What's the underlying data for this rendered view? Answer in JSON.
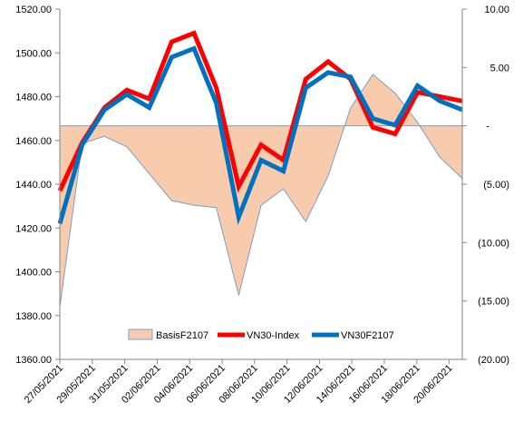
{
  "chart_data": {
    "type": "line",
    "x": [
      "27/05/2021",
      "28/05/2021",
      "31/05/2021",
      "01/06/2021",
      "02/06/2021",
      "03/06/2021",
      "04/06/2021",
      "07/06/2021",
      "08/06/2021",
      "09/06/2021",
      "10/06/2021",
      "11/06/2021",
      "14/06/2021",
      "15/06/2021",
      "16/06/2021",
      "17/06/2021",
      "18/06/2021",
      "21/06/2021",
      "22/06/2021"
    ],
    "x_tick_labels": [
      "27/05/2021",
      "29/05/2021",
      "31/05/2021",
      "02/06/2021",
      "04/06/2021",
      "06/06/2021",
      "08/06/2021",
      "10/06/2021",
      "12/06/2021",
      "14/06/2021",
      "16/06/2021",
      "18/06/2021",
      "20/06/2021"
    ],
    "y_left": {
      "ylim": [
        1360,
        1520
      ],
      "ticks": [
        "1360.00",
        "1380.00",
        "1400.00",
        "1420.00",
        "1440.00",
        "1460.00",
        "1480.00",
        "1500.00",
        "1520.00"
      ]
    },
    "y_right": {
      "ylim": [
        -20,
        10
      ],
      "ticks": [
        "(20.00)",
        "(15.00)",
        "(10.00)",
        "(5.00)",
        "-",
        "5.00",
        "10.00"
      ]
    },
    "series": [
      {
        "name": "BasisF2107",
        "kind": "area",
        "axis": "right",
        "color": "#f8cbad",
        "edge": "#7f9cc4",
        "values": [
          -15.5,
          -1.5,
          -0.9,
          -1.8,
          -4.1,
          -6.4,
          -6.8,
          -7.0,
          -14.5,
          -6.8,
          -5.4,
          -8.2,
          -4.3,
          1.5,
          4.4,
          2.8,
          0.3,
          -2.7,
          -4.5
        ]
      },
      {
        "name": "VN30-Index",
        "kind": "line",
        "axis": "left",
        "color": "#ff0000",
        "values": [
          1437,
          1459,
          1475,
          1483,
          1479,
          1505,
          1509,
          1484,
          1439,
          1458,
          1451,
          1488,
          1496,
          1488,
          1466,
          1463,
          1482,
          1480,
          1478
        ]
      },
      {
        "name": "VN30F2107",
        "kind": "line",
        "axis": "left",
        "color": "#0070c0",
        "values": [
          1422,
          1458,
          1474,
          1481,
          1475,
          1498,
          1502,
          1477,
          1425,
          1451,
          1446,
          1484,
          1491,
          1489,
          1470,
          1467,
          1485,
          1478,
          1474
        ]
      }
    ],
    "legend": {
      "placement": "bottom-center",
      "entries": [
        "BasisF2107",
        "VN30-Index",
        "VN30F2107"
      ]
    },
    "grid": false,
    "xlabel": "",
    "ylabel": ""
  }
}
